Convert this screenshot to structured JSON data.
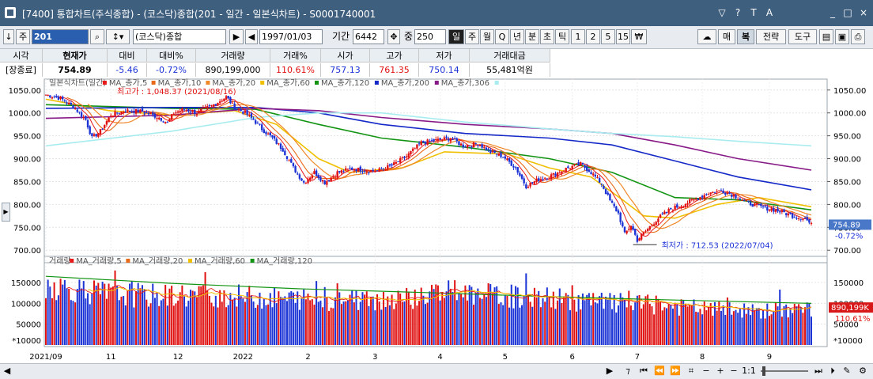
{
  "window": {
    "title": "[7400] 통합차트(주식종합) - (코스닥)종합(201 - 일간 - 일본식차트) - S0001740001",
    "buttons": [
      "?",
      "T",
      "A",
      "_",
      "□",
      "×"
    ]
  },
  "toolbar": {
    "code": "201",
    "market": "(코스닥)종합",
    "start_date": "1997/01/03",
    "period_label": "기간",
    "period_value": "6442",
    "count_label": "중",
    "count_value": "250",
    "intervals": [
      "일",
      "주",
      "월",
      "Q",
      "년",
      "분",
      "초",
      "틱",
      "1",
      "2",
      "5",
      "15",
      "₩"
    ],
    "right_buttons": [
      "매",
      "복",
      "전략",
      "도구"
    ]
  },
  "quote": {
    "headers": [
      "시각",
      "현재가",
      "대비",
      "대비%",
      "거래량",
      "거래%",
      "시가",
      "고가",
      "저가",
      "거래대금"
    ],
    "values": [
      "[장종료]",
      "754.89",
      "-5.46",
      "-0.72%",
      "890,199,000",
      "110.61%",
      "757.13",
      "761.35",
      "750.14",
      "55,481억원"
    ]
  },
  "colors": {
    "up": "#e01010",
    "down": "#1c33d6",
    "ma5": "#e81818",
    "ma10": "#e86a18",
    "ma20": "#f08828",
    "ma60": "#f0c000",
    "ma120": "#129412",
    "ma200": "#1428c8",
    "ma306": "#881a88",
    "ma_long": "#a8ecf0"
  },
  "chart_data": [
    {
      "type": "candlestick",
      "legend": [
        "일본식차트(일간)",
        "MA_종가,5",
        "MA_종가,10",
        "MA_종가,20",
        "MA_종가,60",
        "MA_종가,120",
        "MA_종가,200",
        "MA_종가,306"
      ],
      "annotations": {
        "high": "최고가 : 1,048.37 (2021/08/16)",
        "low": "최저가 : 712.53 (2022/07/04)"
      },
      "y_ticks": [
        "1050.00",
        "1000.00",
        "950.00",
        "900.00",
        "850.00",
        "800.00",
        "750.00",
        "700.00"
      ],
      "ylim": [
        690,
        1060
      ],
      "current_price": "754.89",
      "current_change": "-0.72%",
      "x_labels": [
        "2021/09",
        "11",
        "12",
        "2022",
        "2",
        "3",
        "4",
        "5",
        "6",
        "7",
        "8",
        "9"
      ],
      "close_path": [
        [
          0,
          1040
        ],
        [
          7,
          1032
        ],
        [
          14,
          1010
        ],
        [
          19,
          985
        ],
        [
          22,
          945
        ],
        [
          26,
          960
        ],
        [
          31,
          996
        ],
        [
          38,
          1005
        ],
        [
          46,
          1003
        ],
        [
          54,
          990
        ],
        [
          58,
          978
        ],
        [
          61,
          1000
        ],
        [
          66,
          1008
        ],
        [
          72,
          1000
        ],
        [
          80,
          1018
        ],
        [
          86,
          1035
        ],
        [
          90,
          1012
        ],
        [
          95,
          1000
        ],
        [
          99,
          985
        ],
        [
          103,
          965
        ],
        [
          108,
          945
        ],
        [
          113,
          920
        ],
        [
          118,
          880
        ],
        [
          123,
          848
        ],
        [
          128,
          870
        ],
        [
          133,
          848
        ],
        [
          139,
          870
        ],
        [
          146,
          878
        ],
        [
          152,
          875
        ],
        [
          158,
          873
        ],
        [
          165,
          885
        ],
        [
          172,
          905
        ],
        [
          179,
          935
        ],
        [
          186,
          940
        ],
        [
          193,
          945
        ],
        [
          199,
          928
        ],
        [
          206,
          933
        ],
        [
          212,
          915
        ],
        [
          218,
          905
        ],
        [
          224,
          880
        ],
        [
          229,
          840
        ],
        [
          235,
          855
        ],
        [
          242,
          865
        ],
        [
          249,
          880
        ],
        [
          255,
          888
        ],
        [
          260,
          870
        ],
        [
          265,
          845
        ],
        [
          269,
          808
        ],
        [
          273,
          780
        ],
        [
          276,
          735
        ],
        [
          279,
          755
        ],
        [
          282,
          722
        ],
        [
          286,
          742
        ],
        [
          292,
          770
        ],
        [
          298,
          790
        ],
        [
          304,
          800
        ],
        [
          310,
          812
        ],
        [
          316,
          825
        ],
        [
          322,
          830
        ],
        [
          328,
          820
        ],
        [
          334,
          805
        ],
        [
          340,
          795
        ],
        [
          346,
          790
        ],
        [
          352,
          782
        ],
        [
          358,
          772
        ],
        [
          362,
          770
        ],
        [
          365,
          755
        ]
      ],
      "moving_averages": [
        {
          "name": "MA_종가,60",
          "points": [
            [
              0,
              1030
            ],
            [
              30,
              1005
            ],
            [
              60,
              995
            ],
            [
              90,
              1005
            ],
            [
              110,
              975
            ],
            [
              130,
              900
            ],
            [
              145,
              870
            ],
            [
              170,
              880
            ],
            [
              190,
              915
            ],
            [
              220,
              910
            ],
            [
              240,
              880
            ],
            [
              260,
              860
            ],
            [
              275,
              810
            ],
            [
              285,
              775
            ],
            [
              300,
              770
            ],
            [
              320,
              800
            ],
            [
              340,
              815
            ],
            [
              365,
              795
            ]
          ]
        },
        {
          "name": "MA_종가,120",
          "points": [
            [
              0,
              1018
            ],
            [
              60,
              1010
            ],
            [
              100,
              1008
            ],
            [
              130,
              975
            ],
            [
              160,
              945
            ],
            [
              200,
              925
            ],
            [
              240,
              900
            ],
            [
              270,
              870
            ],
            [
              300,
              815
            ],
            [
              330,
              810
            ],
            [
              365,
              788
            ]
          ]
        },
        {
          "name": "MA_종가,200",
          "points": [
            [
              0,
              1010
            ],
            [
              60,
              1012
            ],
            [
              100,
              1012
            ],
            [
              130,
              1000
            ],
            [
              160,
              975
            ],
            [
              200,
              955
            ],
            [
              240,
              945
            ],
            [
              270,
              930
            ],
            [
              300,
              895
            ],
            [
              330,
              860
            ],
            [
              365,
              832
            ]
          ]
        },
        {
          "name": "MA_종가,306",
          "points": [
            [
              0,
              988
            ],
            [
              60,
              995
            ],
            [
              100,
              1010
            ],
            [
              130,
              1005
            ],
            [
              160,
              990
            ],
            [
              200,
              975
            ],
            [
              240,
              965
            ],
            [
              270,
              955
            ],
            [
              300,
              930
            ],
            [
              330,
              900
            ],
            [
              365,
              875
            ]
          ]
        },
        {
          "name": "MA_long",
          "points": [
            [
              0,
              928
            ],
            [
              60,
              960
            ],
            [
              100,
              990
            ],
            [
              130,
              1000
            ],
            [
              160,
              1000
            ],
            [
              200,
              980
            ],
            [
              240,
              965
            ],
            [
              270,
              955
            ],
            [
              300,
              948
            ],
            [
              330,
              938
            ],
            [
              365,
              928
            ]
          ]
        }
      ]
    },
    {
      "type": "bar",
      "legend": [
        "거래량",
        "MA_거래량,5",
        "MA_거래량,20",
        "MA_거래량,60",
        "MA_거래량,120"
      ],
      "y_ticks": [
        "150000",
        "100000",
        "50000"
      ],
      "ylim": [
        0,
        190000
      ],
      "unit": "*10000",
      "current_volume": "890,199K",
      "current_ratio": "110.61%",
      "volume_path": [
        [
          0,
          145000
        ],
        [
          25,
          125000
        ],
        [
          50,
          118000
        ],
        [
          80,
          120000
        ],
        [
          110,
          112000
        ],
        [
          140,
          108000
        ],
        [
          170,
          112000
        ],
        [
          190,
          126000
        ],
        [
          215,
          118000
        ],
        [
          240,
          112000
        ],
        [
          265,
          102000
        ],
        [
          290,
          96000
        ],
        [
          320,
          84000
        ],
        [
          340,
          80000
        ],
        [
          365,
          88000
        ]
      ],
      "ma_path": [
        [
          0,
          165000
        ],
        [
          60,
          148000
        ],
        [
          120,
          135000
        ],
        [
          180,
          126000
        ],
        [
          240,
          116000
        ],
        [
          300,
          108000
        ],
        [
          365,
          100000
        ]
      ]
    }
  ],
  "bottom": {
    "zoom_text": "1:1"
  }
}
